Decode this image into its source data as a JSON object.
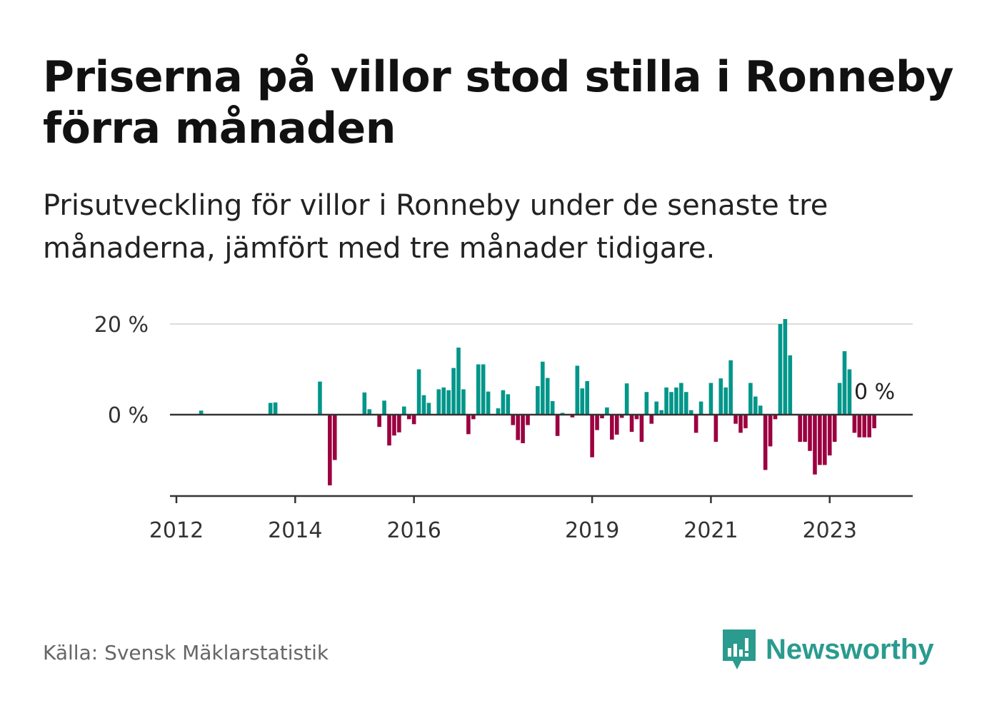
{
  "title": "Priserna på villor stod stilla i Ronneby förra månaden",
  "subtitle": "Prisutveckling för villor i Ronneby under de senaste tre månaderna, jämfört med tre månader tidigare.",
  "source": "Källa: Svensk Mäklarstatistik",
  "brand": "Newsworthy",
  "colors": {
    "positive": "#00968a",
    "negative": "#9b0040",
    "brand": "#2a9b8e",
    "grid": "#dddddd",
    "axis": "#333333"
  },
  "chart_data": {
    "type": "bar",
    "title": "Priserna på villor stod stilla i Ronneby förra månaden",
    "ylabel": "",
    "xlabel": "",
    "ylim": [
      -18,
      21
    ],
    "yticks": [
      {
        "value": 20,
        "label": "20 %"
      },
      {
        "value": 0,
        "label": "0 %"
      }
    ],
    "xticks": [
      {
        "date": "2012-01",
        "label": "2012"
      },
      {
        "date": "2014-01",
        "label": "2014"
      },
      {
        "date": "2016-01",
        "label": "2016"
      },
      {
        "date": "2019-01",
        "label": "2019"
      },
      {
        "date": "2021-01",
        "label": "2021"
      },
      {
        "date": "2023-01",
        "label": "2023"
      }
    ],
    "grid": true,
    "end_label": "0 %",
    "series": [
      {
        "values": [
          {
            "date": "2012-06",
            "value": 0.9
          },
          {
            "date": "2013-08",
            "value": 2.6
          },
          {
            "date": "2013-09",
            "value": 2.7
          },
          {
            "date": "2014-06",
            "value": 7.3
          },
          {
            "date": "2014-08",
            "value": -15.6
          },
          {
            "date": "2014-09",
            "value": -10.0
          },
          {
            "date": "2015-03",
            "value": 4.9
          },
          {
            "date": "2015-04",
            "value": 1.2
          },
          {
            "date": "2015-06",
            "value": -2.7
          },
          {
            "date": "2015-07",
            "value": 3.1
          },
          {
            "date": "2015-08",
            "value": -6.8
          },
          {
            "date": "2015-09",
            "value": -4.6
          },
          {
            "date": "2015-10",
            "value": -3.9
          },
          {
            "date": "2015-11",
            "value": 1.8
          },
          {
            "date": "2015-12",
            "value": -1.0
          },
          {
            "date": "2016-01",
            "value": -2.1
          },
          {
            "date": "2016-02",
            "value": 10.0
          },
          {
            "date": "2016-03",
            "value": 4.3
          },
          {
            "date": "2016-04",
            "value": 2.6
          },
          {
            "date": "2016-06",
            "value": 5.6
          },
          {
            "date": "2016-07",
            "value": 6.0
          },
          {
            "date": "2016-08",
            "value": 5.4
          },
          {
            "date": "2016-09",
            "value": 10.3
          },
          {
            "date": "2016-10",
            "value": 14.8
          },
          {
            "date": "2016-11",
            "value": 5.6
          },
          {
            "date": "2016-12",
            "value": -4.3
          },
          {
            "date": "2017-01",
            "value": -1.0
          },
          {
            "date": "2017-02",
            "value": 11.1
          },
          {
            "date": "2017-03",
            "value": 11.1
          },
          {
            "date": "2017-04",
            "value": 5.1
          },
          {
            "date": "2017-06",
            "value": 1.4
          },
          {
            "date": "2017-07",
            "value": 5.4
          },
          {
            "date": "2017-08",
            "value": 4.5
          },
          {
            "date": "2017-09",
            "value": -2.3
          },
          {
            "date": "2017-10",
            "value": -5.6
          },
          {
            "date": "2017-11",
            "value": -6.3
          },
          {
            "date": "2017-12",
            "value": -2.3
          },
          {
            "date": "2018-02",
            "value": 6.3
          },
          {
            "date": "2018-03",
            "value": 11.7
          },
          {
            "date": "2018-04",
            "value": 8.1
          },
          {
            "date": "2018-05",
            "value": 3.0
          },
          {
            "date": "2018-06",
            "value": -4.7
          },
          {
            "date": "2018-07",
            "value": 0.4
          },
          {
            "date": "2018-09",
            "value": -0.6
          },
          {
            "date": "2018-10",
            "value": 10.8
          },
          {
            "date": "2018-11",
            "value": 5.8
          },
          {
            "date": "2018-12",
            "value": 7.4
          },
          {
            "date": "2019-01",
            "value": -9.4
          },
          {
            "date": "2019-02",
            "value": -3.4
          },
          {
            "date": "2019-03",
            "value": -0.8
          },
          {
            "date": "2019-04",
            "value": 1.6
          },
          {
            "date": "2019-05",
            "value": -5.5
          },
          {
            "date": "2019-06",
            "value": -4.4
          },
          {
            "date": "2019-07",
            "value": -0.7
          },
          {
            "date": "2019-08",
            "value": 6.9
          },
          {
            "date": "2019-09",
            "value": -3.8
          },
          {
            "date": "2019-10",
            "value": -1.0
          },
          {
            "date": "2019-11",
            "value": -6.0
          },
          {
            "date": "2019-12",
            "value": 5.0
          },
          {
            "date": "2020-01",
            "value": -2.0
          },
          {
            "date": "2020-02",
            "value": 2.9
          },
          {
            "date": "2020-03",
            "value": 1.0
          },
          {
            "date": "2020-04",
            "value": 6.0
          },
          {
            "date": "2020-05",
            "value": 5.0
          },
          {
            "date": "2020-06",
            "value": 6.0
          },
          {
            "date": "2020-07",
            "value": 7.0
          },
          {
            "date": "2020-08",
            "value": 5.0
          },
          {
            "date": "2020-09",
            "value": 1.0
          },
          {
            "date": "2020-10",
            "value": -4.0
          },
          {
            "date": "2020-11",
            "value": 2.9
          },
          {
            "date": "2021-01",
            "value": 7.0
          },
          {
            "date": "2021-02",
            "value": -6.0
          },
          {
            "date": "2021-03",
            "value": 8.0
          },
          {
            "date": "2021-04",
            "value": 6.0
          },
          {
            "date": "2021-05",
            "value": 12.0
          },
          {
            "date": "2021-06",
            "value": -2.0
          },
          {
            "date": "2021-07",
            "value": -4.0
          },
          {
            "date": "2021-08",
            "value": -3.0
          },
          {
            "date": "2021-09",
            "value": 7.0
          },
          {
            "date": "2021-10",
            "value": 4.0
          },
          {
            "date": "2021-11",
            "value": 2.0
          },
          {
            "date": "2021-12",
            "value": -12.2
          },
          {
            "date": "2022-01",
            "value": -7.0
          },
          {
            "date": "2022-02",
            "value": -1.0
          },
          {
            "date": "2022-03",
            "value": 20.0
          },
          {
            "date": "2022-04",
            "value": 21.1
          },
          {
            "date": "2022-05",
            "value": 13.1
          },
          {
            "date": "2022-07",
            "value": -6.0
          },
          {
            "date": "2022-08",
            "value": -6.0
          },
          {
            "date": "2022-09",
            "value": -8.0
          },
          {
            "date": "2022-10",
            "value": -13.2
          },
          {
            "date": "2022-11",
            "value": -11.1
          },
          {
            "date": "2022-12",
            "value": -11.1
          },
          {
            "date": "2023-01",
            "value": -9.0
          },
          {
            "date": "2023-02",
            "value": -6.0
          },
          {
            "date": "2023-03",
            "value": 7.0
          },
          {
            "date": "2023-04",
            "value": 14.0
          },
          {
            "date": "2023-05",
            "value": 10.0
          },
          {
            "date": "2023-06",
            "value": -4.0
          },
          {
            "date": "2023-07",
            "value": -5.0
          },
          {
            "date": "2023-08",
            "value": -5.0
          },
          {
            "date": "2023-09",
            "value": -5.0
          },
          {
            "date": "2023-10",
            "value": -3.0
          },
          {
            "date": "2023-11",
            "value": 0.0
          }
        ]
      }
    ]
  }
}
